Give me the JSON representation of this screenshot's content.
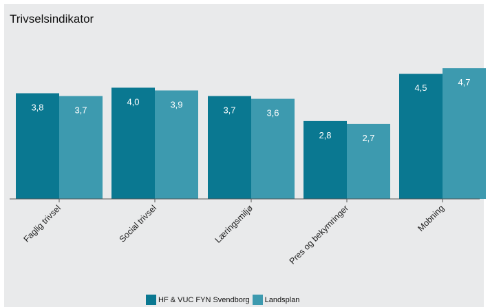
{
  "chart_data": {
    "type": "bar",
    "title": "Trivselsindikator",
    "categories": [
      "Faglig trivsel",
      "Social trivsel",
      "Læringsmiljø",
      "Pres og bekymringer",
      "Mobning"
    ],
    "series": [
      {
        "name": "HF & VUC FYN Svendborg",
        "color": "#0a7891",
        "values": [
          3.8,
          4.0,
          3.7,
          2.8,
          4.5
        ],
        "labels": [
          "3,8",
          "4,0",
          "3,7",
          "2,8",
          "4,5"
        ]
      },
      {
        "name": "Landsplan",
        "color": "#3d9aaf",
        "values": [
          3.7,
          3.9,
          3.6,
          2.7,
          4.7
        ],
        "labels": [
          "3,7",
          "3,9",
          "3,6",
          "2,7",
          "4,7"
        ]
      }
    ],
    "xlabel": "",
    "ylabel": "",
    "ylim": [
      0,
      5
    ],
    "grid": false,
    "legend_position": "bottom"
  }
}
